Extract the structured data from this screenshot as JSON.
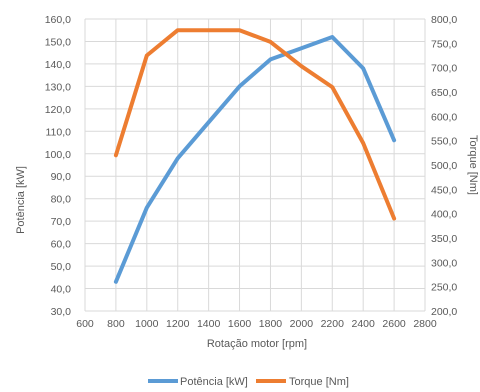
{
  "chart_data": {
    "type": "line",
    "xlabel": "Rotação motor [rpm]",
    "ylabel": "Potência [kW]",
    "y2label": "Torque [Nm]",
    "xlim": [
      600,
      2800
    ],
    "xticks": [
      600,
      800,
      1000,
      1200,
      1400,
      1600,
      1800,
      2000,
      2200,
      2400,
      2600,
      2800
    ],
    "ylim": [
      30,
      160
    ],
    "yticks": [
      "30,0",
      "40,0",
      "50,0",
      "60,0",
      "70,0",
      "80,0",
      "90,0",
      "100,0",
      "110,0",
      "120,0",
      "130,0",
      "140,0",
      "150,0",
      "160,0"
    ],
    "y2lim": [
      200,
      800
    ],
    "y2ticks": [
      "200,0",
      "250,0",
      "300,0",
      "350,0",
      "400,0",
      "450,0",
      "500,0",
      "550,0",
      "600,0",
      "650,0",
      "700,0",
      "750,0",
      "800,0"
    ],
    "grid": true,
    "legend_position": "bottom",
    "series": [
      {
        "name": "Potência [kW]",
        "axis": "left",
        "color": "#5B9BD5",
        "x": [
          800,
          1000,
          1200,
          1400,
          1600,
          1800,
          2000,
          2200,
          2400,
          2600
        ],
        "values": [
          43,
          76,
          98,
          114,
          130,
          142,
          147,
          152,
          138,
          106
        ]
      },
      {
        "name": "Torque [Nm]",
        "axis": "right",
        "color": "#ED7D31",
        "x": [
          800,
          1000,
          1200,
          1400,
          1600,
          1800,
          2000,
          2200,
          2400,
          2600
        ],
        "values": [
          520,
          725,
          777,
          777,
          777,
          753,
          703,
          660,
          545,
          390
        ]
      }
    ]
  }
}
